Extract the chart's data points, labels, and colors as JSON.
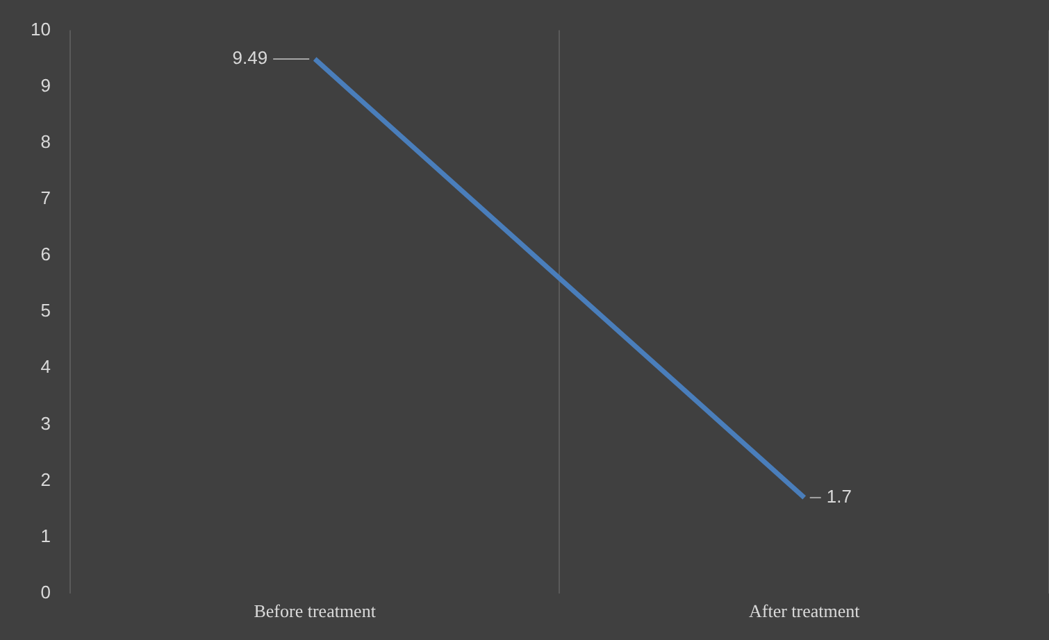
{
  "chart_data": {
    "type": "line",
    "categories": [
      "Before treatment",
      "After treatment"
    ],
    "series": [
      {
        "color": "#4a7ebb",
        "values": [
          9.49,
          1.7
        ]
      }
    ],
    "ylim": [
      0,
      10
    ],
    "yticks": [
      0,
      1,
      2,
      3,
      4,
      5,
      6,
      7,
      8,
      9,
      10
    ],
    "grid": "x",
    "legend": false,
    "marker": "none",
    "line_style": "solid",
    "data_labels": true
  }
}
